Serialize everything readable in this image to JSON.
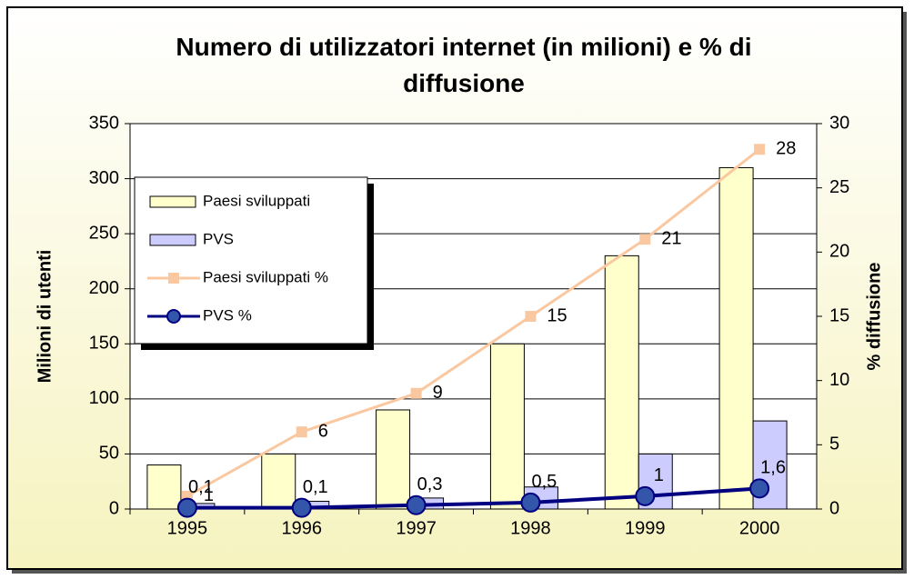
{
  "chart_data": {
    "type": "bar",
    "title": "Numero di utilizzatori internet (in milioni) e % di diffusione",
    "ylabel": "Milioni di utenti",
    "y2label": "% diffusione",
    "categories": [
      "1995",
      "1996",
      "1997",
      "1998",
      "1999",
      "2000"
    ],
    "series": [
      {
        "name": "Paesi sviluppati",
        "type": "bar",
        "color": "#ffffcc",
        "values": [
          40,
          50,
          90,
          150,
          230,
          310
        ]
      },
      {
        "name": "PVS",
        "type": "bar",
        "color": "#ccccff",
        "values": [
          5,
          7,
          10,
          20,
          50,
          80
        ]
      },
      {
        "name": "Paesi sviluppati %",
        "type": "line",
        "axis": "y2",
        "color": "#fac8a0",
        "values": [
          1,
          6,
          9,
          15,
          21,
          28
        ]
      },
      {
        "name": "PVS %",
        "type": "line",
        "axis": "y2",
        "color": "#000080",
        "values": [
          0.1,
          0.1,
          0.3,
          0.5,
          1,
          1.6
        ],
        "value_labels": [
          "0,1",
          "0,1",
          "0,3",
          "0,5",
          "1",
          "1,6"
        ]
      }
    ],
    "ylim": [
      0,
      350
    ],
    "yticks": [
      0,
      50,
      100,
      150,
      200,
      250,
      300,
      350
    ],
    "y2lim": [
      0,
      30
    ],
    "y2ticks": [
      0,
      5,
      10,
      15,
      20,
      25,
      30
    ],
    "grid": true
  }
}
